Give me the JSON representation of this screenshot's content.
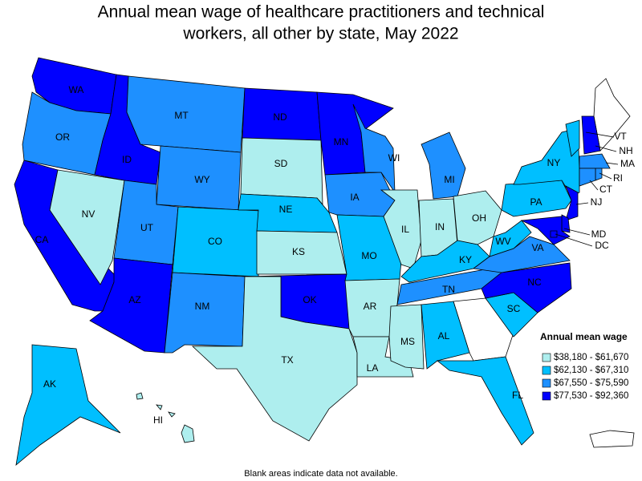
{
  "title_lines": [
    "Annual mean wage of healthcare practitioners and technical",
    "workers, all other by state, May 2022"
  ],
  "footnote": "Blank areas indicate data not available.",
  "legend": {
    "title": "Annual mean wage",
    "bins": [
      {
        "label": "$38,180 - $61,670",
        "color": "#aeeeee"
      },
      {
        "label": "$62,130 - $67,310",
        "color": "#00bfff"
      },
      {
        "label": "$67,550 - $75,590",
        "color": "#1e90ff"
      },
      {
        "label": "$77,530 - $92,360",
        "color": "#0000ff"
      }
    ]
  },
  "states": [
    {
      "label": "WA",
      "bin": 3
    },
    {
      "label": "OR",
      "bin": 2
    },
    {
      "label": "CA",
      "bin": 3
    },
    {
      "label": "NV",
      "bin": 0
    },
    {
      "label": "ID",
      "bin": 3
    },
    {
      "label": "MT",
      "bin": 2
    },
    {
      "label": "WY",
      "bin": 2
    },
    {
      "label": "UT",
      "bin": 2
    },
    {
      "label": "AZ",
      "bin": 3
    },
    {
      "label": "CO",
      "bin": 1
    },
    {
      "label": "NM",
      "bin": 2
    },
    {
      "label": "ND",
      "bin": 3
    },
    {
      "label": "SD",
      "bin": 0
    },
    {
      "label": "NE",
      "bin": 1
    },
    {
      "label": "KS",
      "bin": 0
    },
    {
      "label": "OK",
      "bin": 3
    },
    {
      "label": "TX",
      "bin": 0
    },
    {
      "label": "MN",
      "bin": 3
    },
    {
      "label": "IA",
      "bin": 2
    },
    {
      "label": "MO",
      "bin": 1
    },
    {
      "label": "AR",
      "bin": 0
    },
    {
      "label": "LA",
      "bin": 0
    },
    {
      "label": "WI",
      "bin": 2
    },
    {
      "label": "IL",
      "bin": 0
    },
    {
      "label": "MI",
      "bin": 2
    },
    {
      "label": "IN",
      "bin": 0
    },
    {
      "label": "OH",
      "bin": 0
    },
    {
      "label": "KY",
      "bin": 1
    },
    {
      "label": "TN",
      "bin": 2
    },
    {
      "label": "MS",
      "bin": 0
    },
    {
      "label": "AL",
      "bin": 1
    },
    {
      "label": "FL",
      "bin": 1
    },
    {
      "label": "SC",
      "bin": 1
    },
    {
      "label": "NC",
      "bin": 3
    },
    {
      "label": "VA",
      "bin": 2
    },
    {
      "label": "WV",
      "bin": 1
    },
    {
      "label": "PA",
      "bin": 1
    },
    {
      "label": "NY",
      "bin": 1
    },
    {
      "label": "VT",
      "bin": 1
    },
    {
      "label": "NH",
      "bin": 3
    },
    {
      "label": "MA",
      "bin": 2
    },
    {
      "label": "RI",
      "bin": 2
    },
    {
      "label": "CT",
      "bin": 2
    },
    {
      "label": "NJ",
      "bin": 3
    },
    {
      "label": null,
      "bin": 3
    },
    {
      "label": "MD",
      "bin": 3
    },
    {
      "label": "DC",
      "bin": 3
    },
    {
      "label": "AK",
      "bin": 1
    },
    {
      "label": "HI",
      "bin": 0
    }
  ]
}
